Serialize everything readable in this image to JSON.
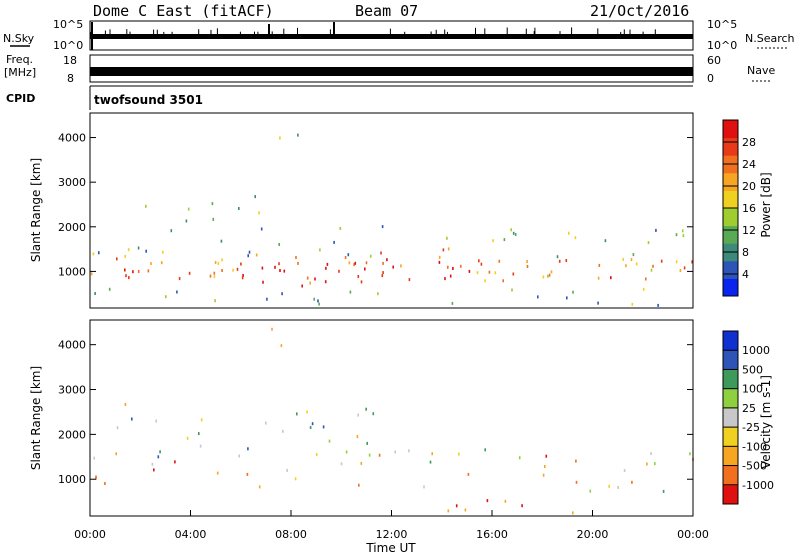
{
  "header": {
    "station": "Dome C East (fitACF)",
    "beam": "Beam 07",
    "date": "21/Oct/2016"
  },
  "panels": {
    "nsky": {
      "left_label": "N.Sky",
      "left_ticks": [
        "10^5",
        "10^0"
      ],
      "right_label": "N.Search",
      "right_ticks": [
        "10^5",
        "10^0"
      ]
    },
    "freq": {
      "left_label": "Freq.",
      "left_unit": "[MHz]",
      "left_ticks": [
        "18",
        "8"
      ],
      "right_label": "Nave",
      "right_ticks": [
        "60",
        "0"
      ]
    },
    "cpid": {
      "label": "CPID",
      "value": "twofsound 3501"
    }
  },
  "chart_data": [
    {
      "type": "heatmap",
      "name": "power",
      "ylabel": "Slant Range [km]",
      "yticks": [
        1000,
        2000,
        3000,
        4000
      ],
      "ylim": [
        180,
        4550
      ],
      "xlim": [
        0,
        24
      ],
      "colorbar": {
        "label": "Power [dB]",
        "ticks": [
          "4",
          "8",
          "12",
          "16",
          "20",
          "24",
          "28"
        ],
        "range": [
          0,
          32
        ],
        "colors": [
          "#0a24f0",
          "#2f54b8",
          "#3d8a7a",
          "#5aaa55",
          "#9fcd2e",
          "#f0d020",
          "#f6a623",
          "#f07020",
          "#e83a18",
          "#e01010"
        ]
      },
      "bands": [
        {
          "t0": 0,
          "t1": 6,
          "r0": 820,
          "r1": 1380,
          "level": 0.75
        },
        {
          "t0": 6,
          "t1": 13,
          "r0": 700,
          "r1": 1450,
          "level": 0.85
        },
        {
          "t0": 13,
          "t1": 16.5,
          "r0": 800,
          "r1": 1550,
          "level": 0.78
        },
        {
          "t0": 16.5,
          "t1": 24,
          "r0": 850,
          "r1": 1350,
          "level": 0.7
        },
        {
          "t0": 0,
          "t1": 24,
          "r0": 1350,
          "r1": 2100,
          "level": 0.35
        },
        {
          "t0": 2,
          "t1": 8,
          "r0": 2100,
          "r1": 2800,
          "level": 0.3
        },
        {
          "t0": 6.8,
          "t1": 8.3,
          "r0": 3700,
          "r1": 4500,
          "level": 0.35
        },
        {
          "t0": 0,
          "t1": 24,
          "r0": 200,
          "r1": 650,
          "level": 0.35
        }
      ]
    },
    {
      "type": "heatmap",
      "name": "velocity",
      "ylabel": "Slant Range [km]",
      "yticks": [
        1000,
        2000,
        3000,
        4000
      ],
      "ylim": [
        180,
        4550
      ],
      "xlim": [
        0,
        24
      ],
      "xticks": [
        "00:00",
        "04:00",
        "08:00",
        "12:00",
        "16:00",
        "20:00",
        "00:00"
      ],
      "xlabel": "Time UT",
      "colorbar": {
        "label": "Velocity [m s-1]",
        "ticks": [
          "-1000",
          "-500",
          "-100",
          "-25",
          "25",
          "100",
          "500",
          "1000"
        ],
        "colors": [
          "#e01010",
          "#f07020",
          "#f6a623",
          "#f0d020",
          "#c8c8c8",
          "#8fd040",
          "#3d9a5a",
          "#2f54b8",
          "#1030d0"
        ]
      },
      "bands": [
        {
          "t0": 0,
          "t1": 8,
          "r0": 850,
          "r1": 1500,
          "level": 0.25
        },
        {
          "t0": 8,
          "t1": 24,
          "r0": 750,
          "r1": 1700,
          "level": 0.35
        },
        {
          "t0": 0,
          "t1": 12,
          "r0": 1500,
          "r1": 2800,
          "level": 0.5
        },
        {
          "t0": 6.8,
          "t1": 8.3,
          "r0": 3700,
          "r1": 4500,
          "level": 0.5
        },
        {
          "t0": 13,
          "t1": 20,
          "r0": 200,
          "r1": 700,
          "level": 0.2
        }
      ]
    }
  ]
}
